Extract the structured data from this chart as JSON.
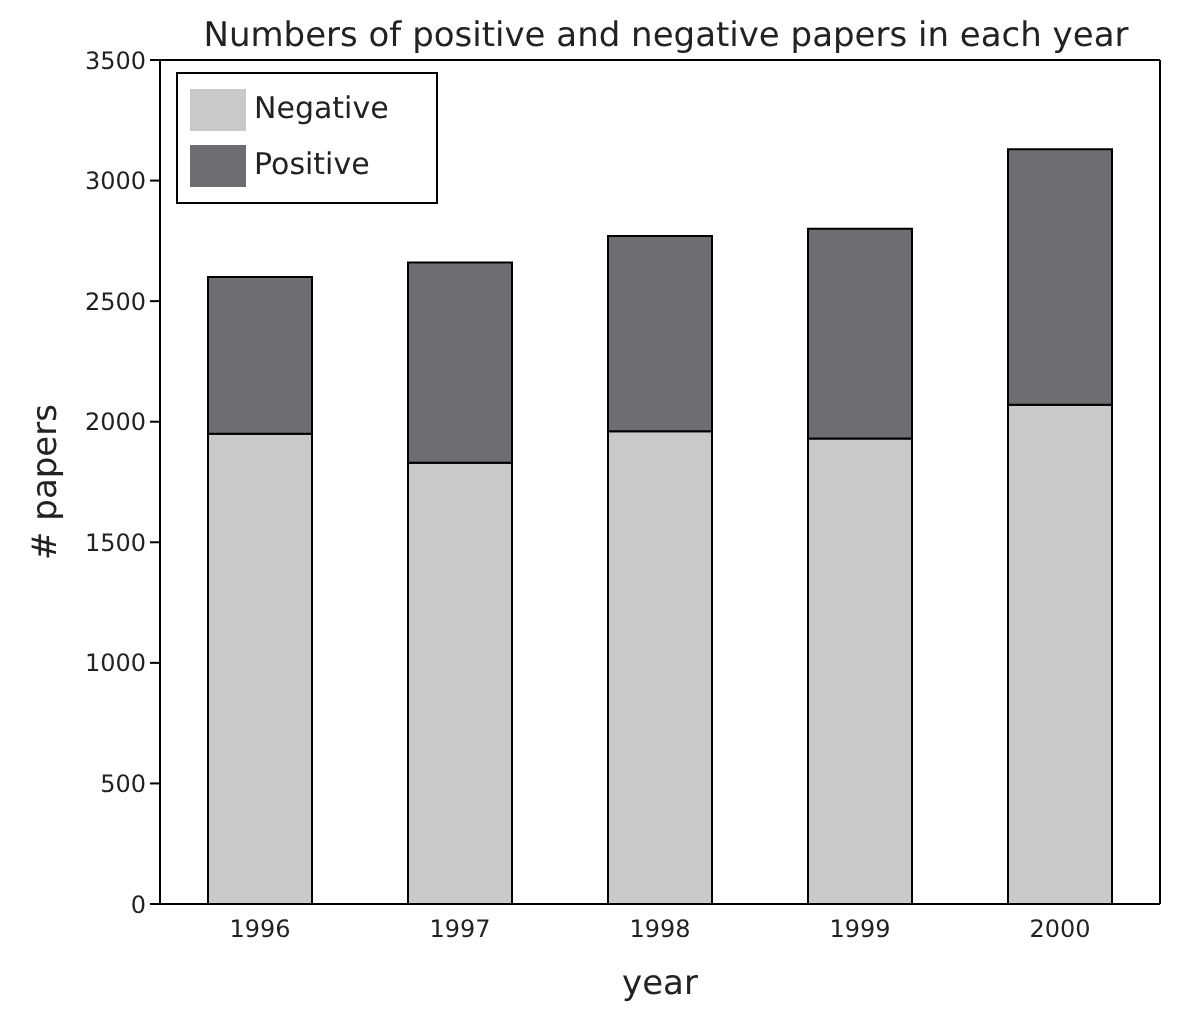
{
  "chart_data": {
    "type": "bar",
    "title": "Numbers of positive and negative papers in each year",
    "xlabel": "year",
    "ylabel": "# papers",
    "categories": [
      "1996",
      "1997",
      "1998",
      "1999",
      "2000"
    ],
    "series": [
      {
        "name": "Negative",
        "color": "#c8c9cb",
        "values": [
          1950,
          1830,
          1960,
          1930,
          2070
        ]
      },
      {
        "name": "Positive",
        "color": "#6d6e71",
        "values": [
          650,
          830,
          810,
          870,
          1060
        ]
      }
    ],
    "stacked": true,
    "ylim": [
      0,
      3500
    ],
    "yticks": [
      0,
      500,
      1000,
      1500,
      2000,
      2500,
      3000,
      3500
    ],
    "grid": false,
    "legend": "top left"
  }
}
